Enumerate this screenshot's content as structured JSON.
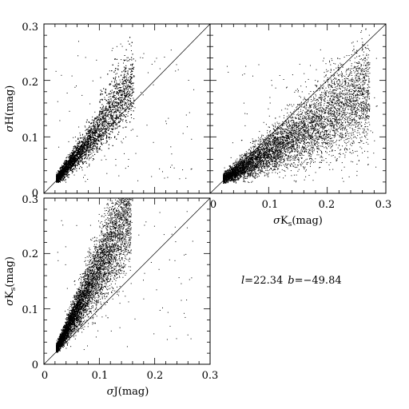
{
  "chart_data": [
    {
      "type": "scatter",
      "panel": "top-left",
      "xlabel": "",
      "ylabel": "σH(mag)",
      "xlim": [
        0,
        0.3
      ],
      "ylim": [
        0,
        0.3
      ],
      "xticks": [],
      "yticks": [
        "0",
        "0.1",
        "0.2",
        "0.3"
      ],
      "reference_line": "y = x",
      "series": [
        {
          "x_range_core": [
            0.02,
            0.16
          ],
          "points": [
            [
              0.025,
              0.027
            ],
            [
              0.03,
              0.032
            ],
            [
              0.035,
              0.04
            ],
            [
              0.04,
              0.05
            ],
            [
              0.045,
              0.058
            ],
            [
              0.05,
              0.068
            ],
            [
              0.055,
              0.075
            ],
            [
              0.06,
              0.082
            ],
            [
              0.065,
              0.09
            ],
            [
              0.07,
              0.097
            ],
            [
              0.08,
              0.108
            ],
            [
              0.09,
              0.12
            ],
            [
              0.1,
              0.13
            ],
            [
              0.11,
              0.14
            ],
            [
              0.12,
              0.15
            ],
            [
              0.13,
              0.16
            ],
            [
              0.14,
              0.17
            ],
            [
              0.15,
              0.18
            ],
            [
              0.145,
              0.22
            ],
            [
              0.13,
              0.2
            ]
          ]
        }
      ]
    },
    {
      "type": "scatter",
      "panel": "top-right",
      "xlabel": "σKs(mag)",
      "ylabel": "",
      "xlim": [
        0,
        0.3
      ],
      "ylim": [
        0,
        0.3
      ],
      "xticks": [
        "0",
        "0.1",
        "0.2",
        "0.3"
      ],
      "yticks": [],
      "reference_line": "y = x",
      "series": [
        {
          "x_range_core": [
            0.02,
            0.28
          ],
          "points": [
            [
              0.025,
              0.028
            ],
            [
              0.03,
              0.03
            ],
            [
              0.04,
              0.036
            ],
            [
              0.05,
              0.042
            ],
            [
              0.06,
              0.048
            ],
            [
              0.07,
              0.055
            ],
            [
              0.08,
              0.062
            ],
            [
              0.09,
              0.07
            ],
            [
              0.1,
              0.078
            ],
            [
              0.12,
              0.09
            ],
            [
              0.14,
              0.1
            ],
            [
              0.16,
              0.112
            ],
            [
              0.18,
              0.122
            ],
            [
              0.2,
              0.13
            ],
            [
              0.22,
              0.14
            ],
            [
              0.24,
              0.15
            ],
            [
              0.26,
              0.16
            ],
            [
              0.2,
              0.2
            ],
            [
              0.16,
              0.16
            ],
            [
              0.28,
              0.17
            ]
          ]
        }
      ]
    },
    {
      "type": "scatter",
      "panel": "bottom-left",
      "xlabel": "σJ(mag)",
      "ylabel": "σKs(mag)",
      "xlim": [
        0,
        0.3
      ],
      "ylim": [
        0,
        0.3
      ],
      "xticks": [
        "0",
        "0.1",
        "0.2",
        "0.3"
      ],
      "yticks": [
        "0",
        "0.1",
        "0.2",
        "0.3"
      ],
      "reference_line": "y = x",
      "series": [
        {
          "x_range_core": [
            0.02,
            0.16
          ],
          "points": [
            [
              0.025,
              0.03
            ],
            [
              0.03,
              0.04
            ],
            [
              0.035,
              0.05
            ],
            [
              0.04,
              0.065
            ],
            [
              0.045,
              0.08
            ],
            [
              0.05,
              0.095
            ],
            [
              0.055,
              0.11
            ],
            [
              0.06,
              0.125
            ],
            [
              0.07,
              0.145
            ],
            [
              0.08,
              0.16
            ],
            [
              0.09,
              0.175
            ],
            [
              0.1,
              0.19
            ],
            [
              0.11,
              0.2
            ],
            [
              0.12,
              0.21
            ],
            [
              0.13,
              0.22
            ],
            [
              0.14,
              0.23
            ],
            [
              0.15,
              0.24
            ],
            [
              0.12,
              0.27
            ],
            [
              0.1,
              0.25
            ],
            [
              0.15,
              0.26
            ]
          ]
        }
      ]
    }
  ],
  "annotation": {
    "l_symbol": "l",
    "l_value": "=22.34",
    "b_symbol": "b",
    "b_value": "=−49.84"
  },
  "labels": {
    "sigma": "σ",
    "H": "H(mag)",
    "J": "J(mag)",
    "K": "K",
    "s": "s",
    "mag": "(mag)"
  }
}
